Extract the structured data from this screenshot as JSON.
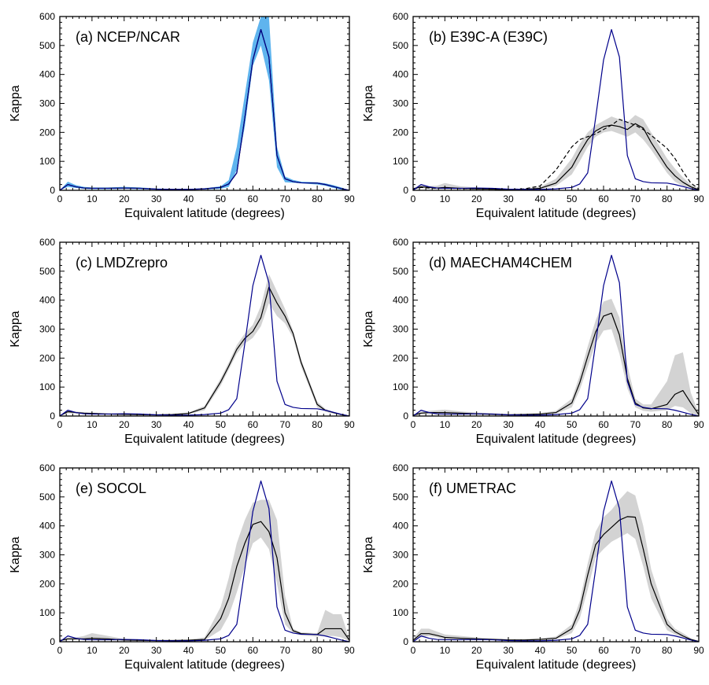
{
  "chart_data": [
    {
      "type": "line",
      "title": "(a) NCEP/NCAR",
      "xlabel": "Equivalent latitude (degrees)",
      "ylabel": "Kappa",
      "xlim": [
        0,
        90
      ],
      "ylim": [
        0,
        600
      ],
      "xticks": [
        0,
        10,
        20,
        30,
        40,
        50,
        60,
        70,
        80,
        90
      ],
      "yticks": [
        0,
        100,
        200,
        300,
        400,
        500,
        600
      ],
      "x": [
        0,
        2.5,
        5,
        7.5,
        10,
        15,
        20,
        25,
        30,
        35,
        40,
        45,
        50,
        52.5,
        55,
        57.5,
        60,
        62.5,
        65,
        67.5,
        70,
        72.5,
        75,
        80,
        82.5,
        85,
        87.5,
        90
      ],
      "band": {
        "color": "#5fb4ee",
        "lower": [
          0,
          12,
          8,
          5,
          4,
          4,
          5,
          4,
          2,
          2,
          2,
          3,
          5,
          12,
          70,
          220,
          430,
          500,
          380,
          80,
          28,
          26,
          24,
          20,
          16,
          8,
          2,
          0
        ],
        "upper": [
          0,
          30,
          18,
          12,
          10,
          10,
          12,
          10,
          6,
          5,
          5,
          7,
          14,
          35,
          150,
          330,
          510,
          600,
          600,
          150,
          48,
          36,
          30,
          28,
          24,
          18,
          10,
          0
        ]
      },
      "series": [
        {
          "color": "#000000",
          "dash": false,
          "values": [
            0,
            20,
            12,
            8,
            7,
            7,
            8,
            7,
            4,
            3,
            3,
            5,
            10,
            22,
            60,
            250,
            450,
            555,
            460,
            120,
            40,
            30,
            26,
            25,
            20,
            13,
            6,
            0
          ]
        },
        {
          "color": "#00008b",
          "dash": false,
          "values": [
            0,
            20,
            12,
            8,
            7,
            7,
            8,
            7,
            4,
            3,
            3,
            5,
            10,
            22,
            60,
            250,
            450,
            555,
            460,
            120,
            40,
            30,
            26,
            25,
            20,
            13,
            6,
            0
          ]
        }
      ]
    },
    {
      "type": "line",
      "title": "(b) E39C-A (E39C)",
      "xlabel": "Equivalent latitude (degrees)",
      "ylabel": "Kappa",
      "xlim": [
        0,
        90
      ],
      "ylim": [
        0,
        600
      ],
      "xticks": [
        0,
        10,
        20,
        30,
        40,
        50,
        60,
        70,
        80,
        90
      ],
      "yticks": [
        0,
        100,
        200,
        300,
        400,
        500,
        600
      ],
      "x": [
        0,
        2.5,
        5,
        7.5,
        10,
        15,
        20,
        25,
        30,
        35,
        40,
        45,
        50,
        52.5,
        55,
        57.5,
        60,
        62.5,
        65,
        67.5,
        70,
        72.5,
        75,
        80,
        82.5,
        85,
        87.5,
        90
      ],
      "band": {
        "color": "#d3d3d3",
        "lower": [
          2,
          8,
          5,
          4,
          4,
          3,
          2,
          2,
          1,
          2,
          4,
          15,
          55,
          100,
          150,
          185,
          200,
          205,
          195,
          185,
          200,
          175,
          140,
          60,
          30,
          15,
          5,
          0
        ],
        "upper": [
          8,
          18,
          15,
          16,
          25,
          14,
          10,
          8,
          5,
          6,
          12,
          40,
          110,
          160,
          200,
          225,
          240,
          255,
          245,
          235,
          260,
          245,
          200,
          110,
          75,
          45,
          20,
          5
        ]
      },
      "series": [
        {
          "color": "#000000",
          "dash": false,
          "values": [
            5,
            12,
            10,
            8,
            10,
            7,
            5,
            4,
            2,
            3,
            7,
            25,
            80,
            130,
            175,
            205,
            220,
            225,
            220,
            210,
            230,
            215,
            165,
            80,
            50,
            28,
            12,
            2
          ]
        },
        {
          "color": "#000000",
          "dash": true,
          "values": [
            5,
            10,
            8,
            7,
            8,
            6,
            5,
            4,
            3,
            5,
            15,
            70,
            150,
            175,
            185,
            195,
            210,
            225,
            245,
            235,
            225,
            210,
            190,
            145,
            110,
            65,
            25,
            5
          ]
        },
        {
          "color": "#00008b",
          "dash": false,
          "values": [
            0,
            20,
            12,
            8,
            7,
            7,
            8,
            7,
            4,
            3,
            3,
            5,
            10,
            22,
            60,
            250,
            450,
            555,
            460,
            120,
            40,
            30,
            26,
            25,
            20,
            13,
            6,
            0
          ]
        }
      ]
    },
    {
      "type": "line",
      "title": "(c) LMDZrepro",
      "xlabel": "Equivalent latitude (degrees)",
      "ylabel": "Kappa",
      "xlim": [
        0,
        90
      ],
      "ylim": [
        0,
        600
      ],
      "xticks": [
        0,
        10,
        20,
        30,
        40,
        50,
        60,
        70,
        80,
        90
      ],
      "yticks": [
        0,
        100,
        200,
        300,
        400,
        500,
        600
      ],
      "x": [
        0,
        2.5,
        5,
        7.5,
        10,
        15,
        20,
        25,
        30,
        35,
        40,
        45,
        50,
        52.5,
        55,
        57.5,
        60,
        62.5,
        65,
        67.5,
        70,
        72.5,
        75,
        80,
        82.5,
        85,
        87.5,
        90
      ],
      "band": {
        "color": "#d3d3d3",
        "lower": [
          0,
          10,
          8,
          6,
          5,
          4,
          3,
          3,
          2,
          3,
          6,
          20,
          105,
          160,
          215,
          250,
          270,
          310,
          390,
          345,
          320,
          270,
          170,
          30,
          15,
          8,
          3,
          0
        ],
        "upper": [
          2,
          20,
          16,
          13,
          12,
          9,
          8,
          7,
          5,
          7,
          12,
          35,
          130,
          185,
          245,
          285,
          315,
          380,
          490,
          430,
          370,
          295,
          195,
          50,
          25,
          15,
          6,
          1
        ]
      },
      "series": [
        {
          "color": "#000000",
          "dash": false,
          "values": [
            1,
            15,
            12,
            10,
            9,
            7,
            6,
            5,
            4,
            5,
            9,
            28,
            118,
            172,
            230,
            268,
            292,
            340,
            445,
            390,
            345,
            285,
            185,
            40,
            20,
            12,
            5,
            0
          ]
        },
        {
          "color": "#00008b",
          "dash": false,
          "values": [
            0,
            20,
            12,
            8,
            7,
            7,
            8,
            7,
            4,
            3,
            3,
            5,
            10,
            22,
            60,
            250,
            450,
            555,
            460,
            120,
            40,
            30,
            26,
            25,
            20,
            13,
            6,
            0
          ]
        }
      ]
    },
    {
      "type": "line",
      "title": "(d) MAECHAM4CHEM",
      "xlabel": "Equivalent latitude (degrees)",
      "ylabel": "Kappa",
      "xlim": [
        0,
        90
      ],
      "ylim": [
        0,
        600
      ],
      "xticks": [
        0,
        10,
        20,
        30,
        40,
        50,
        60,
        70,
        80,
        90
      ],
      "yticks": [
        0,
        100,
        200,
        300,
        400,
        500,
        600
      ],
      "x": [
        0,
        2.5,
        5,
        7.5,
        10,
        15,
        20,
        25,
        30,
        35,
        40,
        45,
        50,
        52.5,
        55,
        57.5,
        60,
        62.5,
        65,
        67.5,
        70,
        72.5,
        75,
        80,
        82.5,
        85,
        87.5,
        90
      ],
      "band": {
        "color": "#d3d3d3",
        "lower": [
          1,
          5,
          5,
          4,
          4,
          4,
          3,
          3,
          2,
          3,
          4,
          8,
          30,
          90,
          170,
          250,
          295,
          300,
          215,
          95,
          30,
          18,
          15,
          20,
          35,
          30,
          10,
          2
        ],
        "upper": [
          5,
          15,
          18,
          20,
          22,
          16,
          12,
          10,
          7,
          8,
          10,
          18,
          60,
          140,
          240,
          330,
          395,
          405,
          340,
          175,
          60,
          40,
          40,
          120,
          210,
          220,
          80,
          10
        ]
      },
      "series": [
        {
          "color": "#000000",
          "dash": false,
          "values": [
            3,
            10,
            12,
            12,
            12,
            10,
            8,
            6,
            4,
            5,
            7,
            12,
            45,
            115,
            205,
            290,
            345,
            355,
            280,
            130,
            45,
            28,
            25,
            40,
            75,
            88,
            45,
            5
          ]
        },
        {
          "color": "#00008b",
          "dash": false,
          "values": [
            0,
            20,
            12,
            8,
            7,
            7,
            8,
            7,
            4,
            3,
            3,
            5,
            10,
            22,
            60,
            250,
            450,
            555,
            460,
            120,
            40,
            30,
            26,
            25,
            20,
            13,
            6,
            0
          ]
        }
      ]
    },
    {
      "type": "line",
      "title": "(e) SOCOL",
      "xlabel": "Equivalent latitude (degrees)",
      "ylabel": "Kappa",
      "xlim": [
        0,
        90
      ],
      "ylim": [
        0,
        600
      ],
      "xticks": [
        0,
        10,
        20,
        30,
        40,
        50,
        60,
        70,
        80,
        90
      ],
      "yticks": [
        0,
        100,
        200,
        300,
        400,
        500,
        600
      ],
      "x": [
        0,
        2.5,
        5,
        7.5,
        10,
        15,
        20,
        25,
        30,
        35,
        40,
        45,
        50,
        52.5,
        55,
        57.5,
        60,
        62.5,
        65,
        67.5,
        70,
        72.5,
        75,
        80,
        82.5,
        85,
        87.5,
        90
      ],
      "band": {
        "color": "#d3d3d3",
        "lower": [
          2,
          5,
          6,
          5,
          5,
          4,
          3,
          3,
          2,
          2,
          3,
          5,
          40,
          90,
          170,
          260,
          340,
          360,
          320,
          200,
          60,
          30,
          22,
          18,
          20,
          20,
          15,
          2
        ],
        "upper": [
          6,
          14,
          15,
          20,
          30,
          20,
          10,
          8,
          6,
          6,
          8,
          15,
          120,
          220,
          340,
          420,
          480,
          490,
          490,
          420,
          160,
          45,
          32,
          30,
          110,
          95,
          95,
          8
        ]
      },
      "series": [
        {
          "color": "#000000",
          "dash": false,
          "values": [
            4,
            10,
            10,
            10,
            12,
            10,
            6,
            5,
            4,
            4,
            5,
            8,
            80,
            150,
            260,
            340,
            405,
            415,
            380,
            290,
            100,
            38,
            28,
            25,
            45,
            45,
            45,
            5
          ]
        },
        {
          "color": "#00008b",
          "dash": false,
          "values": [
            0,
            20,
            12,
            8,
            7,
            7,
            8,
            7,
            4,
            3,
            3,
            5,
            10,
            22,
            60,
            250,
            450,
            555,
            460,
            120,
            40,
            30,
            26,
            25,
            20,
            13,
            6,
            0
          ]
        }
      ]
    },
    {
      "type": "line",
      "title": "(f) UMETRAC",
      "xlabel": "Equivalent latitude (degrees)",
      "ylabel": "Kappa",
      "xlim": [
        0,
        90
      ],
      "ylim": [
        0,
        600
      ],
      "xticks": [
        0,
        10,
        20,
        30,
        40,
        50,
        60,
        70,
        80,
        90
      ],
      "yticks": [
        0,
        100,
        200,
        300,
        400,
        500,
        600
      ],
      "x": [
        0,
        2.5,
        5,
        7.5,
        10,
        15,
        20,
        25,
        30,
        35,
        40,
        45,
        50,
        52.5,
        55,
        57.5,
        60,
        62.5,
        65,
        67.5,
        70,
        72.5,
        75,
        80,
        82.5,
        85,
        87.5,
        90
      ],
      "band": {
        "color": "#d3d3d3",
        "lower": [
          2,
          15,
          20,
          15,
          10,
          8,
          6,
          5,
          4,
          4,
          5,
          8,
          30,
          80,
          180,
          290,
          320,
          345,
          360,
          375,
          355,
          260,
          150,
          40,
          25,
          15,
          5,
          0
        ],
        "upper": [
          10,
          45,
          45,
          35,
          25,
          20,
          15,
          12,
          10,
          10,
          12,
          18,
          60,
          140,
          270,
          380,
          430,
          455,
          490,
          520,
          505,
          400,
          250,
          80,
          45,
          30,
          12,
          2
        ]
      },
      "series": [
        {
          "color": "#000000",
          "dash": false,
          "values": [
            5,
            28,
            28,
            22,
            15,
            12,
            10,
            8,
            6,
            6,
            8,
            12,
            45,
            110,
            230,
            335,
            370,
            395,
            420,
            432,
            430,
            320,
            200,
            60,
            35,
            20,
            8,
            1
          ]
        },
        {
          "color": "#00008b",
          "dash": false,
          "values": [
            0,
            20,
            12,
            8,
            7,
            7,
            8,
            7,
            4,
            3,
            3,
            5,
            10,
            22,
            60,
            250,
            450,
            555,
            460,
            120,
            40,
            30,
            26,
            25,
            20,
            13,
            6,
            0
          ]
        }
      ]
    }
  ]
}
